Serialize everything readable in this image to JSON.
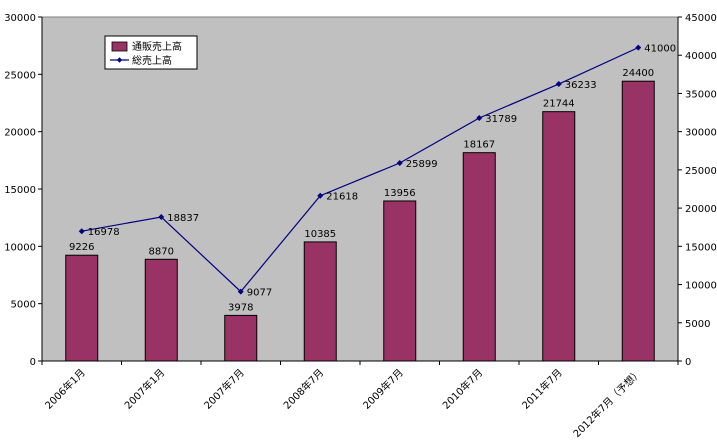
{
  "chart_data": {
    "type": "bar",
    "categories": [
      "2006年1月",
      "2007年1月",
      "2007年7月",
      "2008年7月",
      "2009年7月",
      "2010年7月",
      "2011年7月",
      "2012年7月（予想）"
    ],
    "series": [
      {
        "name": "通販売上高",
        "type": "bar",
        "axis": "left",
        "color": "#993366",
        "values": [
          9226,
          8870,
          3978,
          10385,
          13956,
          18167,
          21744,
          24400
        ]
      },
      {
        "name": "総売上高",
        "type": "line",
        "axis": "right",
        "color": "#000080",
        "values": [
          16978,
          18837,
          9077,
          21618,
          25899,
          31789,
          36233,
          41000
        ]
      }
    ],
    "y_left": {
      "min": 0,
      "max": 30000,
      "step": 5000
    },
    "y_right": {
      "min": 0,
      "max": 45000,
      "step": 5000
    },
    "plot_background": "#c0c0c0",
    "legend": "top-left"
  }
}
